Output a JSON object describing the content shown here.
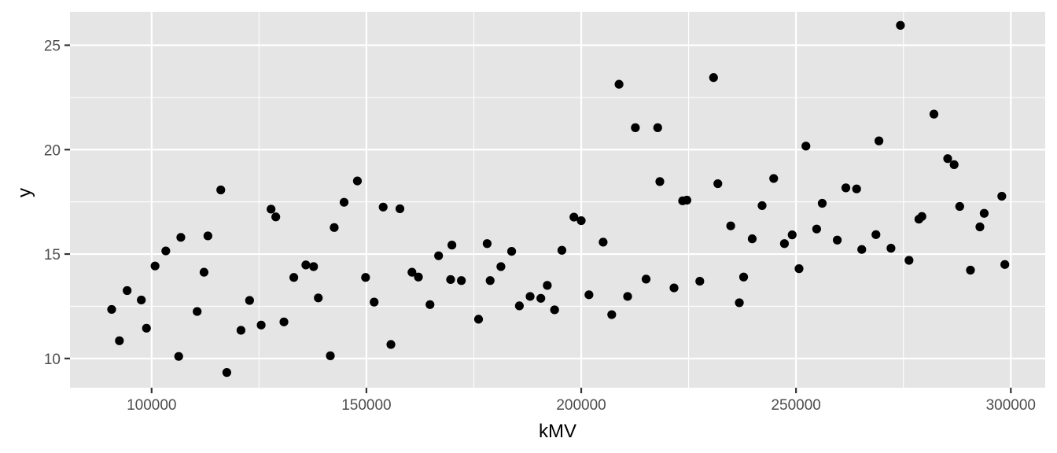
{
  "chart_data": {
    "type": "scatter",
    "xlabel": "kMV",
    "ylabel": "y",
    "xlim": [
      81000,
      308000
    ],
    "ylim": [
      8.6,
      26.6
    ],
    "x_ticks": [
      100000,
      150000,
      200000,
      250000,
      300000
    ],
    "x_tick_labels": [
      "100000",
      "150000",
      "200000",
      "250000",
      "300000"
    ],
    "y_ticks": [
      10,
      15,
      20,
      25
    ],
    "y_tick_labels": [
      "10",
      "15",
      "20",
      "25"
    ],
    "grid": true,
    "point_color": "#000000",
    "panel_color": "#e5e5e5",
    "points": [
      [
        90700,
        12.35
      ],
      [
        92500,
        10.85
      ],
      [
        94300,
        13.25
      ],
      [
        97600,
        12.8
      ],
      [
        98800,
        11.45
      ],
      [
        100800,
        14.43
      ],
      [
        103300,
        15.15
      ],
      [
        106300,
        10.1
      ],
      [
        106800,
        15.8
      ],
      [
        110600,
        12.25
      ],
      [
        112200,
        14.13
      ],
      [
        113100,
        15.87
      ],
      [
        116100,
        18.07
      ],
      [
        117500,
        9.33
      ],
      [
        120800,
        11.35
      ],
      [
        122800,
        12.78
      ],
      [
        125500,
        11.6
      ],
      [
        127800,
        17.15
      ],
      [
        128900,
        16.78
      ],
      [
        130800,
        11.75
      ],
      [
        133100,
        13.88
      ],
      [
        135900,
        14.48
      ],
      [
        137700,
        14.4
      ],
      [
        138800,
        12.9
      ],
      [
        141600,
        10.13
      ],
      [
        142500,
        16.27
      ],
      [
        144800,
        17.48
      ],
      [
        147900,
        18.5
      ],
      [
        149800,
        13.88
      ],
      [
        151800,
        12.7
      ],
      [
        153900,
        17.25
      ],
      [
        155700,
        10.67
      ],
      [
        157800,
        17.17
      ],
      [
        160600,
        14.13
      ],
      [
        162100,
        13.9
      ],
      [
        164800,
        12.58
      ],
      [
        166800,
        14.92
      ],
      [
        169600,
        13.78
      ],
      [
        169900,
        15.43
      ],
      [
        172100,
        13.73
      ],
      [
        176100,
        11.88
      ],
      [
        178100,
        15.5
      ],
      [
        178800,
        13.73
      ],
      [
        181300,
        14.4
      ],
      [
        183800,
        15.13
      ],
      [
        185600,
        12.52
      ],
      [
        188100,
        12.97
      ],
      [
        190600,
        12.88
      ],
      [
        192100,
        13.5
      ],
      [
        193800,
        12.33
      ],
      [
        195500,
        15.18
      ],
      [
        198300,
        16.77
      ],
      [
        200000,
        16.6
      ],
      [
        201800,
        13.05
      ],
      [
        205100,
        15.57
      ],
      [
        207100,
        12.1
      ],
      [
        208800,
        23.13
      ],
      [
        210800,
        12.97
      ],
      [
        212600,
        21.05
      ],
      [
        215100,
        13.8
      ],
      [
        217800,
        21.05
      ],
      [
        218300,
        18.47
      ],
      [
        221600,
        13.38
      ],
      [
        223600,
        17.55
      ],
      [
        224600,
        17.58
      ],
      [
        227600,
        13.7
      ],
      [
        230800,
        23.45
      ],
      [
        231800,
        18.37
      ],
      [
        234800,
        16.35
      ],
      [
        236800,
        12.67
      ],
      [
        237800,
        13.9
      ],
      [
        239800,
        15.73
      ],
      [
        242100,
        17.32
      ],
      [
        244800,
        18.62
      ],
      [
        247300,
        15.5
      ],
      [
        249100,
        15.92
      ],
      [
        250700,
        14.3
      ],
      [
        252300,
        20.17
      ],
      [
        254800,
        16.2
      ],
      [
        256100,
        17.43
      ],
      [
        259600,
        15.67
      ],
      [
        261600,
        18.17
      ],
      [
        264100,
        18.12
      ],
      [
        265300,
        15.22
      ],
      [
        268600,
        15.93
      ],
      [
        269300,
        20.42
      ],
      [
        272100,
        15.28
      ],
      [
        274300,
        25.95
      ],
      [
        276300,
        14.7
      ],
      [
        278600,
        16.67
      ],
      [
        279300,
        16.8
      ],
      [
        282100,
        21.7
      ],
      [
        285300,
        19.57
      ],
      [
        286800,
        19.28
      ],
      [
        288100,
        17.28
      ],
      [
        290600,
        14.23
      ],
      [
        292800,
        16.3
      ],
      [
        293800,
        16.95
      ],
      [
        297900,
        17.77
      ],
      [
        298600,
        14.5
      ]
    ]
  }
}
